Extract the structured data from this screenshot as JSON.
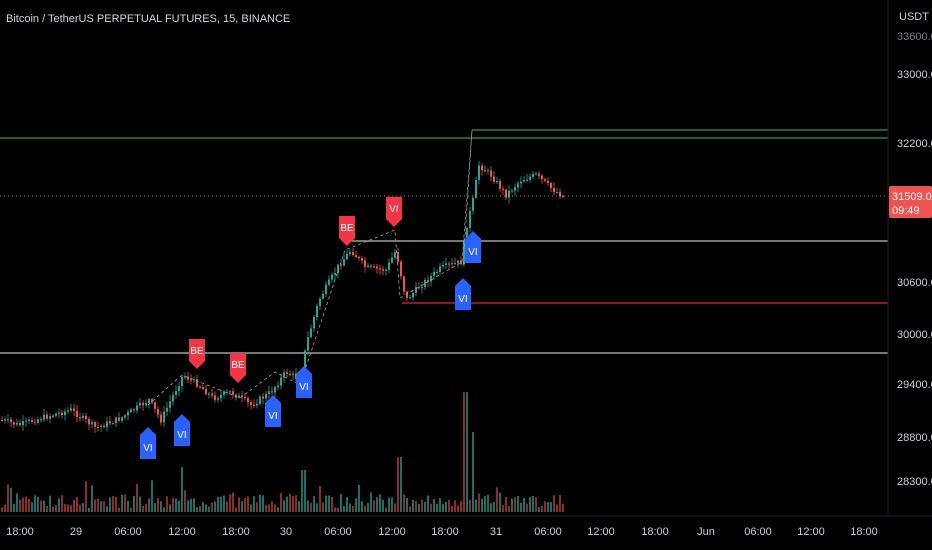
{
  "header": {
    "title": "Bitcoin / TetherUS PERPETUAL FUTURES, 15, BINANCE"
  },
  "price_axis": {
    "currency": "USDT"
  },
  "price_label": {
    "value": "31509.0",
    "countdown": "09:49"
  },
  "colors": {
    "up": "#26a69a",
    "down": "#ef5350",
    "green_level": "#2e7d32",
    "red_level": "#b22222",
    "gray_level": "#9e9e9e",
    "vi_marker": "#2962ff",
    "be_marker": "#f23645",
    "price_line": "#ef5350",
    "background": "#000000"
  },
  "chart_data": {
    "type": "candlestick",
    "title": "Bitcoin / TetherUS PERPETUAL FUTURES, 15, BINANCE",
    "y_axis": {
      "unit": "USDT",
      "ticks": [
        33000.0,
        32200.0,
        31509.0,
        30600.0,
        30000.0,
        29400.0,
        28800.0,
        28300.0
      ],
      "range": [
        28100,
        33600
      ]
    },
    "x_axis": {
      "ticks": [
        "18:00",
        "29",
        "06:00",
        "12:00",
        "18:00",
        "30",
        "06:00",
        "12:00",
        "18:00",
        "31",
        "06:00",
        "12:00",
        "18:00",
        "Jun",
        "06:00",
        "12:00",
        "18:00"
      ]
    },
    "price_path": [
      [
        "18:00",
        29330
      ],
      [
        "29",
        29250
      ],
      [
        "06:00",
        29300
      ],
      [
        "12:00",
        29560
      ],
      [
        "18:00",
        29350
      ],
      [
        "30",
        29800
      ],
      [
        "06:00",
        30700
      ],
      [
        "12:00",
        30400
      ],
      [
        "18:00",
        30700
      ],
      [
        "31",
        31700
      ],
      [
        "06:00",
        31509
      ]
    ],
    "current_price": 31509.0,
    "horizontal_levels": [
      {
        "price": 32250,
        "color": "green",
        "extent": "full"
      },
      {
        "price": 32180,
        "color": "green",
        "extent": "from 31"
      },
      {
        "price": 31000,
        "color": "gray",
        "extent": "from 06:00 (30)"
      },
      {
        "price": 30350,
        "color": "red",
        "extent": "from 12:00 (30)"
      },
      {
        "price": 29750,
        "color": "gray",
        "extent": "full"
      }
    ],
    "markers": [
      {
        "label": "VI",
        "type": "buy",
        "near": "06:00 (29)"
      },
      {
        "label": "VI",
        "type": "buy",
        "near": "12:00 (29)"
      },
      {
        "label": "BE",
        "type": "sell",
        "near": "12:00 (29)"
      },
      {
        "label": "BE",
        "type": "sell",
        "near": "18:00 (29)"
      },
      {
        "label": "VI",
        "type": "buy",
        "near": "18:00 (29)"
      },
      {
        "label": "VI",
        "type": "buy",
        "near": "30"
      },
      {
        "label": "BE",
        "type": "sell",
        "near": "06:00 (30)"
      },
      {
        "label": "VI",
        "type": "sell",
        "near": "12:00 (30)"
      },
      {
        "label": "VI",
        "type": "buy",
        "near": "18:00 (30)"
      },
      {
        "label": "VI",
        "type": "buy",
        "near": "18:00 (30)"
      }
    ],
    "volume": "bars along bottom, spike near 31",
    "grid": false
  }
}
